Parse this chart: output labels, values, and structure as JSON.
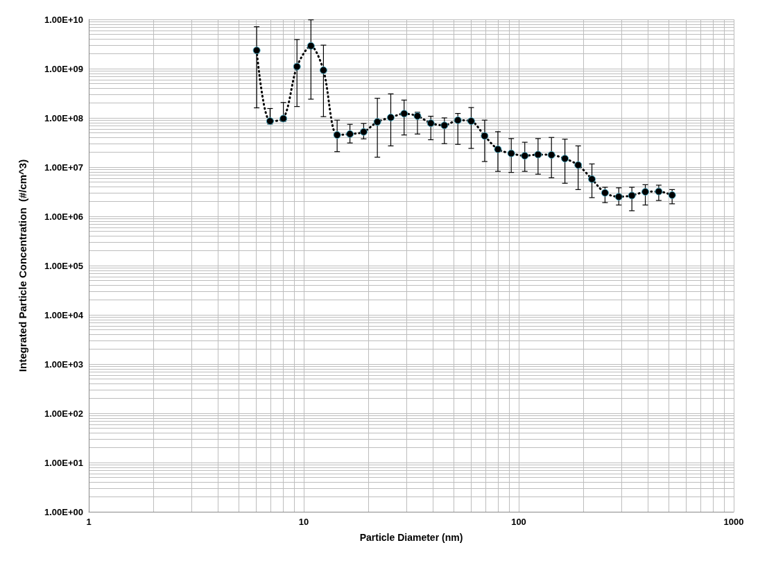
{
  "chart_data": {
    "type": "line",
    "xlabel": "Particle Diameter (nm)",
    "ylabel": "Integrated Particle Concentration  (#/cm^3)",
    "log": "xy",
    "grid": true,
    "marker": "circle",
    "line_style": "dotted",
    "xlim": [
      1,
      1000
    ],
    "xticks": [
      1,
      10,
      100,
      1000
    ],
    "ylim": [
      1,
      10000000000
    ],
    "yticks": [
      {
        "value": 1,
        "label": "1.00E+00"
      },
      {
        "value": 10,
        "label": "1.00E+01"
      },
      {
        "value": 100,
        "label": "1.00E+02"
      },
      {
        "value": 1000,
        "label": "1.00E+03"
      },
      {
        "value": 10000,
        "label": "1.00E+04"
      },
      {
        "value": 100000,
        "label": "1.00E+05"
      },
      {
        "value": 1000000,
        "label": "1.00E+06"
      },
      {
        "value": 10000000,
        "label": "1.00E+07"
      },
      {
        "value": 100000000,
        "label": "1.00E+08"
      },
      {
        "value": 1000000000,
        "label": "1.00E+09"
      },
      {
        "value": 10000000000,
        "label": "1.00E+10"
      }
    ],
    "series": [
      {
        "color": "#000000",
        "x": [
          6.04,
          6.97,
          8.04,
          9.3,
          10.8,
          12.35,
          14.3,
          16.4,
          19.0,
          22.0,
          25.4,
          29.3,
          33.8,
          39.0,
          45.1,
          52.1,
          60.1,
          69.4,
          80.0,
          92.3,
          106.7,
          123,
          142,
          164,
          189,
          219,
          252,
          292,
          336,
          388,
          448,
          517
        ],
        "values": [
          2350000000,
          86000000,
          97000000,
          1100000000,
          2900000000,
          930000000,
          45000000,
          47000000,
          52000000,
          83000000,
          102000000,
          122000000,
          109000000,
          78000000,
          70500000,
          89600000,
          86000000,
          43000000,
          23000000,
          19000000,
          17000000,
          18000000,
          17700000,
          14900000,
          11000000,
          5700000,
          3000000,
          2500000,
          2650000,
          3150000,
          3200000,
          2700000
        ],
        "errors": [
          [
            160000000,
            7100000000
          ],
          [
            75000000,
            155000000
          ],
          [
            85000000,
            205000000
          ],
          [
            170000000,
            3900000000
          ],
          [
            240000000,
            9800000000
          ],
          [
            106000000,
            3000000000
          ],
          [
            20600000,
            90000000
          ],
          [
            31000000,
            74000000
          ],
          [
            37500000,
            77000000
          ],
          [
            15900000,
            250000000
          ],
          [
            27000000,
            308000000
          ],
          [
            45000000,
            230000000
          ],
          [
            47000000,
            130000000
          ],
          [
            36000000,
            108000000
          ],
          [
            30000000,
            100000000
          ],
          [
            29000000,
            123000000
          ],
          [
            24000000,
            162000000
          ],
          [
            13000000,
            90000000
          ],
          [
            8200000,
            52500000
          ],
          [
            7800000,
            38000000
          ],
          [
            8200000,
            32000000
          ],
          [
            7200000,
            38000000
          ],
          [
            6100000,
            40000000
          ],
          [
            4700000,
            37000000
          ],
          [
            3500000,
            27000000
          ],
          [
            2400000,
            11600000
          ],
          [
            1900000,
            3900000
          ],
          [
            1700000,
            3800000
          ],
          [
            1300000,
            3900000
          ],
          [
            1700000,
            4400000
          ],
          [
            2100000,
            4300000
          ],
          [
            1800000,
            3500000
          ]
        ]
      }
    ]
  }
}
